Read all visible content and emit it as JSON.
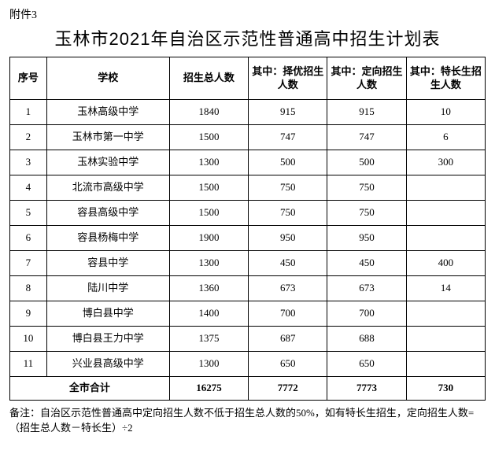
{
  "attachment_label": "附件3",
  "title": "玉林市2021年自治区示范性普通高中招生计划表",
  "columns": [
    "序号",
    "学校",
    "招生总人数",
    "其中：择优招生人数",
    "其中：定向招生人数",
    "其中：特长生招生人数"
  ],
  "rows": [
    {
      "seq": "1",
      "school": "玉林高级中学",
      "total": "1840",
      "merit": "915",
      "directed": "915",
      "special": "10"
    },
    {
      "seq": "2",
      "school": "玉林市第一中学",
      "total": "1500",
      "merit": "747",
      "directed": "747",
      "special": "6"
    },
    {
      "seq": "3",
      "school": "玉林实验中学",
      "total": "1300",
      "merit": "500",
      "directed": "500",
      "special": "300"
    },
    {
      "seq": "4",
      "school": "北流市高级中学",
      "total": "1500",
      "merit": "750",
      "directed": "750",
      "special": ""
    },
    {
      "seq": "5",
      "school": "容县高级中学",
      "total": "1500",
      "merit": "750",
      "directed": "750",
      "special": ""
    },
    {
      "seq": "6",
      "school": "容县杨梅中学",
      "total": "1900",
      "merit": "950",
      "directed": "950",
      "special": ""
    },
    {
      "seq": "7",
      "school": "容县中学",
      "total": "1300",
      "merit": "450",
      "directed": "450",
      "special": "400"
    },
    {
      "seq": "8",
      "school": "陆川中学",
      "total": "1360",
      "merit": "673",
      "directed": "673",
      "special": "14"
    },
    {
      "seq": "9",
      "school": "博白县中学",
      "total": "1400",
      "merit": "700",
      "directed": "700",
      "special": ""
    },
    {
      "seq": "10",
      "school": "博白县王力中学",
      "total": "1375",
      "merit": "687",
      "directed": "688",
      "special": ""
    },
    {
      "seq": "11",
      "school": "兴业县高级中学",
      "total": "1300",
      "merit": "650",
      "directed": "650",
      "special": ""
    }
  ],
  "total_row": {
    "label": "全市合计",
    "total": "16275",
    "merit": "7772",
    "directed": "7773",
    "special": "730"
  },
  "footnote": "备注：自治区示范性普通高中定向招生人数不低于招生总人数的50%，如有特长生招生，定向招生人数=（招生总人数－特长生）÷2"
}
